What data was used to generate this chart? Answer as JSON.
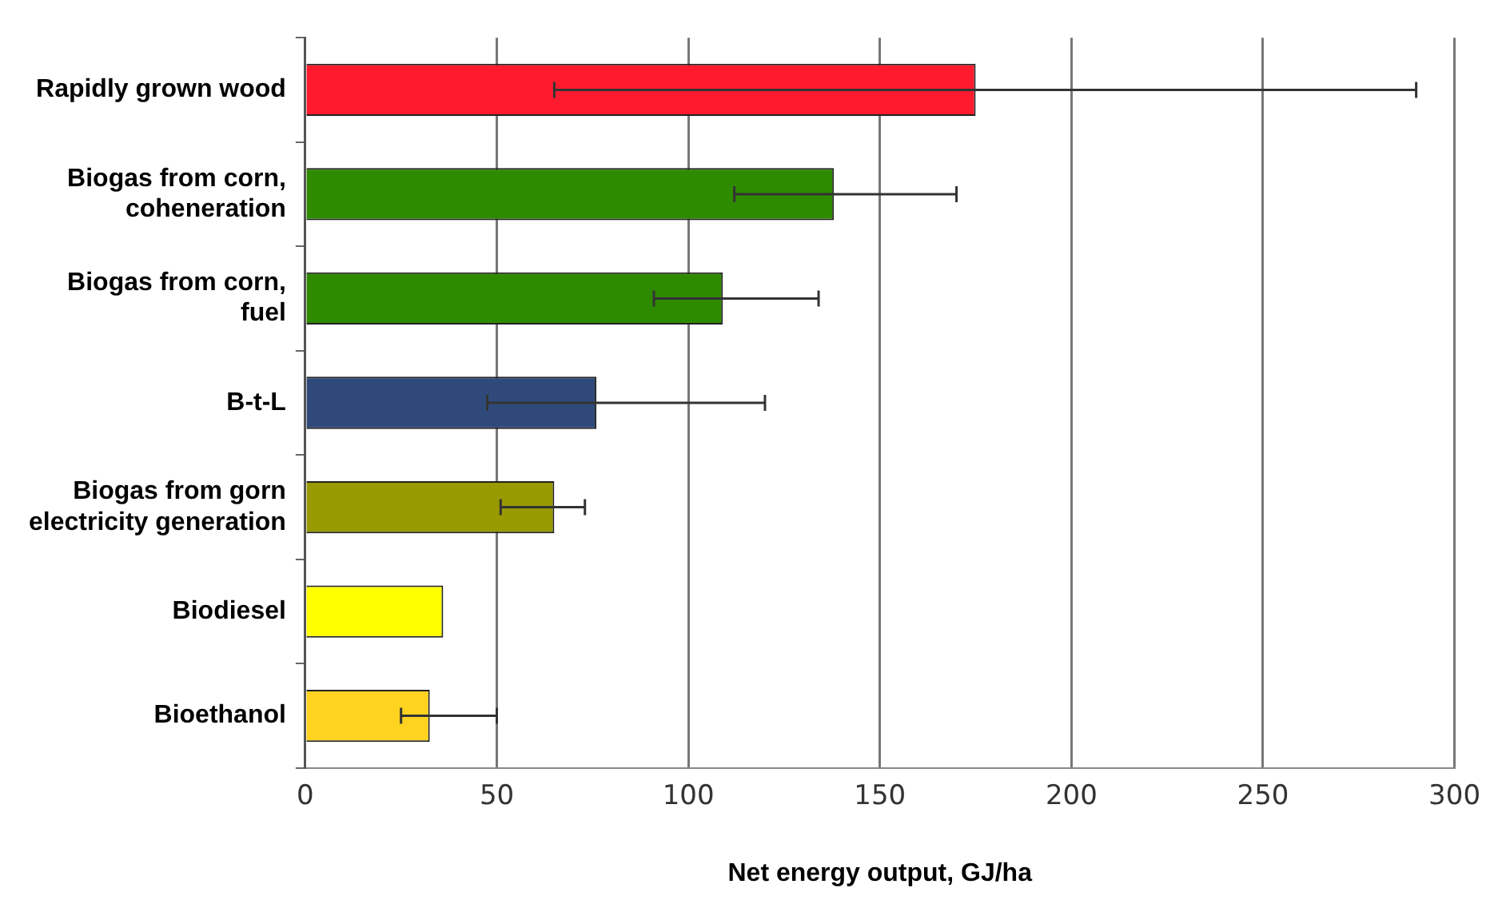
{
  "chart_data": {
    "type": "bar",
    "orientation": "horizontal",
    "xlabel": "Net energy output, GJ/ha",
    "categories": [
      "Rapidly grown wood",
      "Biogas from corn,\ncoheneration",
      "Biogas from corn,\nfuel",
      "B-t-L",
      "Biogas from gorn\nelectricity generation",
      "Biodiesel",
      "Bioethanol"
    ],
    "values": [
      175,
      138,
      109,
      76,
      65,
      36,
      32.5
    ],
    "colors": [
      "#ff1a2e",
      "#2e8b00",
      "#2e8b00",
      "#2f4a7a",
      "#999900",
      "#ffff00",
      "#ffd320"
    ],
    "errors": [
      [
        65,
        290
      ],
      [
        112,
        170
      ],
      [
        91,
        134
      ],
      [
        47.5,
        120
      ],
      [
        51,
        73
      ],
      null,
      [
        25,
        50
      ]
    ],
    "xlim": [
      0,
      300
    ],
    "xticks": [
      0,
      50,
      100,
      150,
      200,
      250,
      300
    ],
    "grid": "x",
    "legend": false
  }
}
